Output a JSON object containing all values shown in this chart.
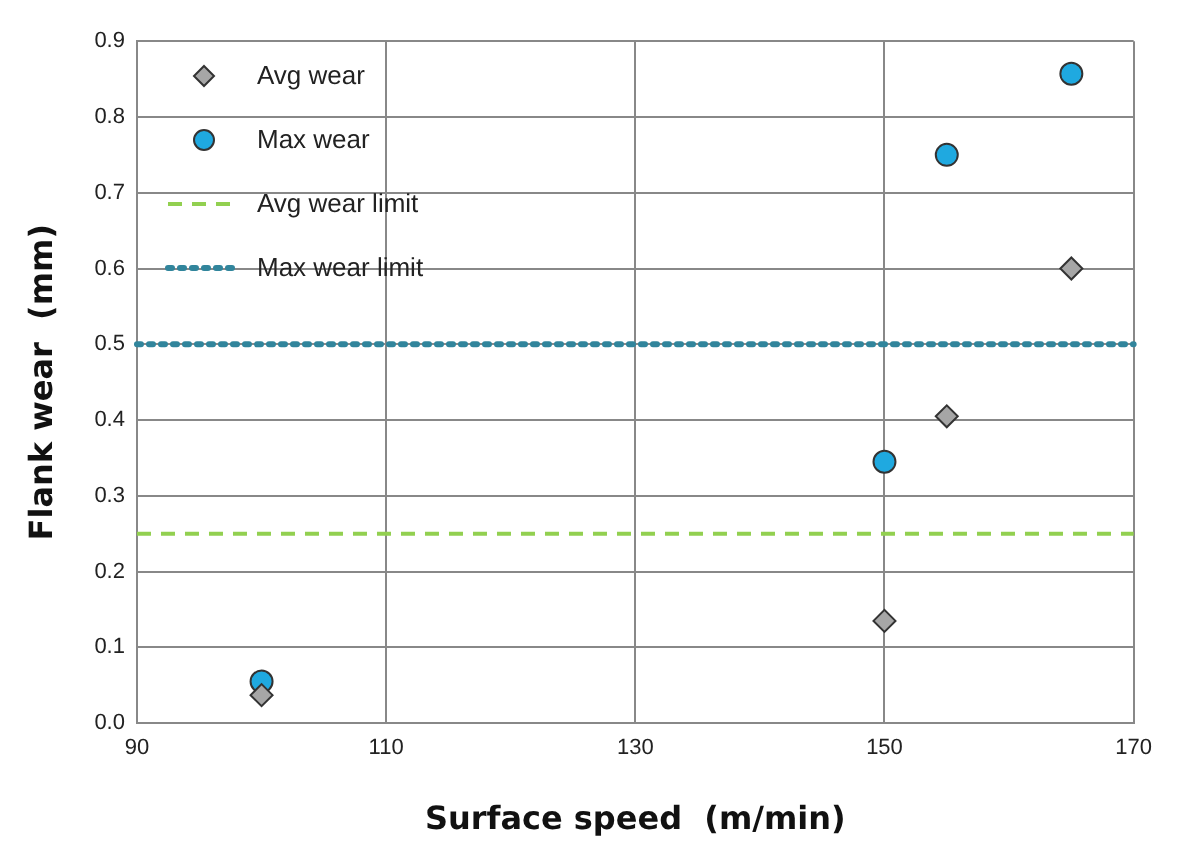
{
  "chart_data": {
    "type": "scatter",
    "xlabel": "Surface speed  (m/min)",
    "ylabel": "Flank wear  (mm)",
    "series": [
      {
        "name": "Avg wear",
        "color": "#a6a6a6",
        "marker": "diamond",
        "x": [
          100,
          150,
          155,
          165
        ],
        "values": [
          0.037,
          0.135,
          0.405,
          0.6
        ]
      },
      {
        "name": "Max wear",
        "color": "#1fa9e0",
        "marker": "circle",
        "x": [
          100,
          150,
          155,
          165
        ],
        "values": [
          0.055,
          0.345,
          0.75,
          0.857
        ]
      }
    ],
    "ref_lines": [
      {
        "axis": "y",
        "value": 0.25,
        "label": "Avg wear limit",
        "color": "#92d050",
        "line_style": "dashed"
      },
      {
        "axis": "y",
        "value": 0.5,
        "label": "Max wear limit",
        "color": "#31859c",
        "line_style": "dotted"
      }
    ],
    "xlim": [
      90,
      170
    ],
    "xticks": [
      90,
      110,
      130,
      150,
      170
    ],
    "ylim": [
      0,
      0.9
    ],
    "yticks": [
      {
        "value": 0,
        "label": "0.0"
      },
      0.1,
      0.2,
      0.3,
      0.4,
      0.5,
      0.6,
      0.7,
      0.8,
      0.9
    ],
    "grid": true,
    "legend": "top left"
  }
}
